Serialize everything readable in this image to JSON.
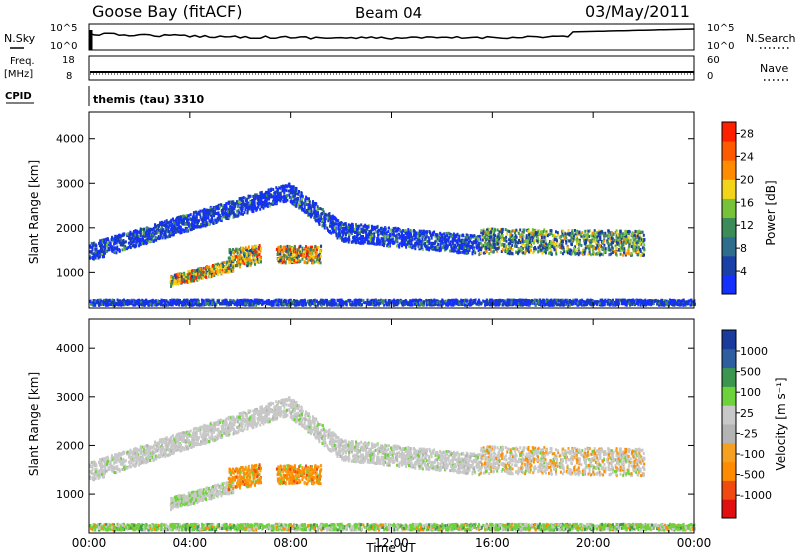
{
  "header": {
    "station": "Goose Bay (fitACF)",
    "beam": "Beam 04",
    "date": "03/May/2011"
  },
  "status_panels": {
    "nsky_label": "N.Sky",
    "nsky_ticks": [
      "10^5",
      "10^0"
    ],
    "nsearch_label": "N.Search",
    "nsearch_ticks": [
      "10^5",
      "10^0"
    ],
    "freq_label": "Freq.",
    "freq_unit": "[MHz]",
    "freq_ticks": [
      "18",
      "8"
    ],
    "nave_label": "Nave",
    "nave_ticks": [
      "60",
      "0"
    ],
    "cpid_label": "CPID",
    "cpid_text": "themis (tau) 3310"
  },
  "colors": {
    "power": [
      "#1430ff",
      "#1a3fa6",
      "#2e6e8c",
      "#3c8c5a",
      "#78c23a",
      "#f2d51a",
      "#ff8c00",
      "#ff5a00",
      "#ff2000"
    ],
    "velocity": [
      "#e01010",
      "#f04a10",
      "#ff8c00",
      "#f5a020",
      "#b4b4b4",
      "#c8c8c8",
      "#6ed23c",
      "#3c9650",
      "#2e5ea0",
      "#1a3a9c"
    ]
  },
  "chart_data": [
    {
      "type": "heatmap",
      "title": "Power",
      "xlabel": "Time UT",
      "ylabel": "Slant Range [km]",
      "x_ticks": [
        "00:00",
        "04:00",
        "08:00",
        "12:00",
        "16:00",
        "20:00",
        "00:00"
      ],
      "xlim_hours": [
        0,
        24
      ],
      "y_ticks": [
        "1000",
        "2000",
        "3000",
        "4000"
      ],
      "ylim": [
        200,
        4600
      ],
      "colorbar_label": "Power [dB]",
      "colorbar_ticks": [
        "4",
        "8",
        "12",
        "16",
        "20",
        "24",
        "28"
      ],
      "colorbar_range": [
        0,
        30
      ],
      "scatter_bands": [
        {
          "t_start": 0.0,
          "t_end": 7.9,
          "r_start": 1450,
          "r_end": 2800,
          "width": 380
        },
        {
          "t_start": 7.9,
          "t_end": 10.0,
          "r_start": 2800,
          "r_end": 1900,
          "width": 420
        },
        {
          "t_start": 10.0,
          "t_end": 15.5,
          "r_start": 1900,
          "r_end": 1600,
          "width": 420
        },
        {
          "t_start": 15.5,
          "t_end": 22.0,
          "r_start": 1700,
          "r_end": 1650,
          "width": 550
        },
        {
          "t_start": 3.2,
          "t_end": 5.7,
          "r_start": 800,
          "r_end": 1150,
          "width": 250
        },
        {
          "t_start": 5.5,
          "t_end": 6.8,
          "r_start": 1300,
          "r_end": 1400,
          "width": 420
        },
        {
          "t_start": 7.4,
          "t_end": 9.2,
          "r_start": 1400,
          "r_end": 1400,
          "width": 380
        },
        {
          "t_start": 0.0,
          "t_end": 24.0,
          "r_start": 320,
          "r_end": 320,
          "width": 120
        }
      ]
    },
    {
      "type": "heatmap",
      "title": "Velocity",
      "xlabel": "Time UT",
      "ylabel": "Slant Range [km]",
      "x_ticks": [
        "00:00",
        "04:00",
        "08:00",
        "12:00",
        "16:00",
        "20:00",
        "00:00"
      ],
      "xlim_hours": [
        0,
        24
      ],
      "y_ticks": [
        "1000",
        "2000",
        "3000",
        "4000"
      ],
      "ylim": [
        200,
        4600
      ],
      "colorbar_label": "Velocity [m s⁻¹]",
      "colorbar_ticks": [
        "1000",
        "500",
        "100",
        "25",
        "-25",
        "-100",
        "-500",
        "-1000"
      ],
      "colorbar_range": [
        -1000,
        1000
      ]
    }
  ]
}
